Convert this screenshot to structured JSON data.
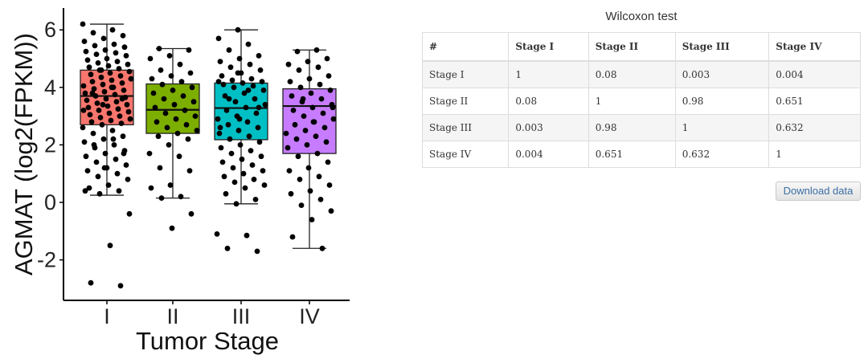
{
  "chart_data": {
    "type": "box",
    "xlabel": "Tumor Stage",
    "ylabel": "AGMAT  (log2(FPKM))",
    "categories": [
      "I",
      "II",
      "III",
      "IV"
    ],
    "ylim": [
      -3.5,
      6.7
    ],
    "yticks": [
      -2,
      0,
      2,
      4,
      6
    ],
    "ytick_labels": [
      "-2",
      "0",
      "2",
      "4",
      "6"
    ],
    "boxes": [
      {
        "name": "I",
        "color": "#F8766D",
        "whisker_low": 0.25,
        "q1": 2.7,
        "median": 3.7,
        "q3": 4.6,
        "whisker_high": 6.2
      },
      {
        "name": "II",
        "color": "#7CAE00",
        "whisker_low": 0.15,
        "q1": 2.4,
        "median": 3.22,
        "q3": 4.12,
        "whisker_high": 5.35
      },
      {
        "name": "III",
        "color": "#00BFC4",
        "whisker_low": -0.05,
        "q1": 2.18,
        "median": 3.28,
        "q3": 4.15,
        "whisker_high": 6.0
      },
      {
        "name": "IV",
        "color": "#C77CFF",
        "whisker_low": -1.6,
        "q1": 1.7,
        "median": 3.35,
        "q3": 3.95,
        "whisker_high": 5.3
      }
    ],
    "points": [
      {
        "group": 0,
        "y": [
          6.2,
          6.0,
          5.9,
          5.8,
          5.7,
          5.6,
          5.5,
          5.45,
          5.4,
          5.3,
          5.25,
          5.2,
          5.15,
          5.1,
          5.0,
          4.95,
          4.9,
          4.85,
          4.8,
          4.75,
          4.7,
          4.65,
          4.6,
          4.55,
          4.5,
          4.45,
          4.4,
          4.35,
          4.3,
          4.25,
          4.2,
          4.15,
          4.1,
          4.05,
          4.0,
          3.95,
          3.9,
          3.85,
          3.8,
          3.75,
          3.7,
          3.65,
          3.6,
          3.55,
          3.5,
          3.45,
          3.4,
          3.35,
          3.3,
          3.25,
          3.2,
          3.15,
          3.1,
          3.05,
          3.0,
          2.95,
          2.9,
          2.85,
          2.8,
          2.75,
          2.7,
          2.6,
          2.5,
          2.4,
          2.3,
          2.2,
          2.1,
          2.0,
          1.9,
          1.8,
          1.7,
          1.6,
          1.5,
          1.4,
          1.3,
          1.2,
          1.1,
          1.0,
          0.9,
          0.8,
          0.6,
          0.5,
          0.4,
          0.3,
          -0.4,
          -1.5,
          -2.8,
          -2.9,
          4.6,
          4.3,
          4.0,
          3.8,
          3.6,
          3.4,
          3.2,
          2.2,
          2.0,
          1.7,
          1.2,
          0.4
        ]
      },
      {
        "group": 1,
        "y": [
          5.35,
          5.3,
          5.1,
          5.0,
          4.8,
          4.6,
          4.5,
          4.4,
          4.3,
          4.2,
          4.1,
          4.0,
          3.9,
          3.8,
          3.7,
          3.6,
          3.5,
          3.4,
          3.3,
          3.2,
          3.1,
          3.0,
          2.9,
          2.8,
          2.7,
          2.6,
          2.5,
          2.4,
          2.3,
          2.2,
          2.0,
          1.7,
          1.6,
          1.2,
          1.1,
          0.6,
          0.5,
          0.2,
          0.15,
          -0.4,
          -0.9
        ]
      },
      {
        "group": 2,
        "y": [
          6.0,
          5.7,
          5.5,
          5.3,
          5.1,
          5.0,
          4.9,
          4.8,
          4.7,
          4.6,
          4.5,
          4.4,
          4.3,
          4.25,
          4.2,
          4.15,
          4.1,
          4.05,
          4.0,
          3.9,
          3.8,
          3.7,
          3.6,
          3.5,
          3.4,
          3.3,
          3.2,
          3.1,
          3.0,
          2.9,
          2.8,
          2.7,
          2.6,
          2.5,
          2.4,
          2.3,
          2.2,
          2.1,
          2.0,
          1.9,
          1.8,
          1.7,
          1.6,
          1.5,
          1.4,
          1.3,
          1.2,
          1.1,
          1.0,
          0.9,
          0.8,
          0.7,
          0.6,
          0.5,
          0.3,
          0.1,
          -0.05,
          -1.1,
          -1.15,
          -1.6,
          -1.7,
          4.5,
          4.2,
          3.9,
          3.6,
          3.3,
          2.9,
          2.6
        ]
      },
      {
        "group": 3,
        "y": [
          5.3,
          5.25,
          5.0,
          4.9,
          4.8,
          4.7,
          4.6,
          4.4,
          4.3,
          4.2,
          4.1,
          4.0,
          3.9,
          3.8,
          3.7,
          3.6,
          3.5,
          3.4,
          3.3,
          3.2,
          3.1,
          3.0,
          2.9,
          2.8,
          2.7,
          2.6,
          2.5,
          2.4,
          2.3,
          2.2,
          2.1,
          2.0,
          1.9,
          1.7,
          1.6,
          1.4,
          1.2,
          1.1,
          0.9,
          0.8,
          0.6,
          0.4,
          0.3,
          0.1,
          -0.1,
          -0.3,
          -0.6,
          -1.2,
          -1.6,
          3.6,
          3.3,
          2.8
        ]
      }
    ]
  },
  "table": {
    "title": "Wilcoxon test",
    "headers": [
      "#",
      "Stage I",
      "Stage II",
      "Stage III",
      "Stage IV"
    ],
    "rows": [
      [
        "Stage I",
        "1",
        "0.08",
        "0.003",
        "0.004"
      ],
      [
        "Stage II",
        "0.08",
        "1",
        "0.98",
        "0.651"
      ],
      [
        "Stage III",
        "0.003",
        "0.98",
        "1",
        "0.632"
      ],
      [
        "Stage IV",
        "0.004",
        "0.651",
        "0.632",
        "1"
      ]
    ]
  },
  "download_button": "Download data"
}
